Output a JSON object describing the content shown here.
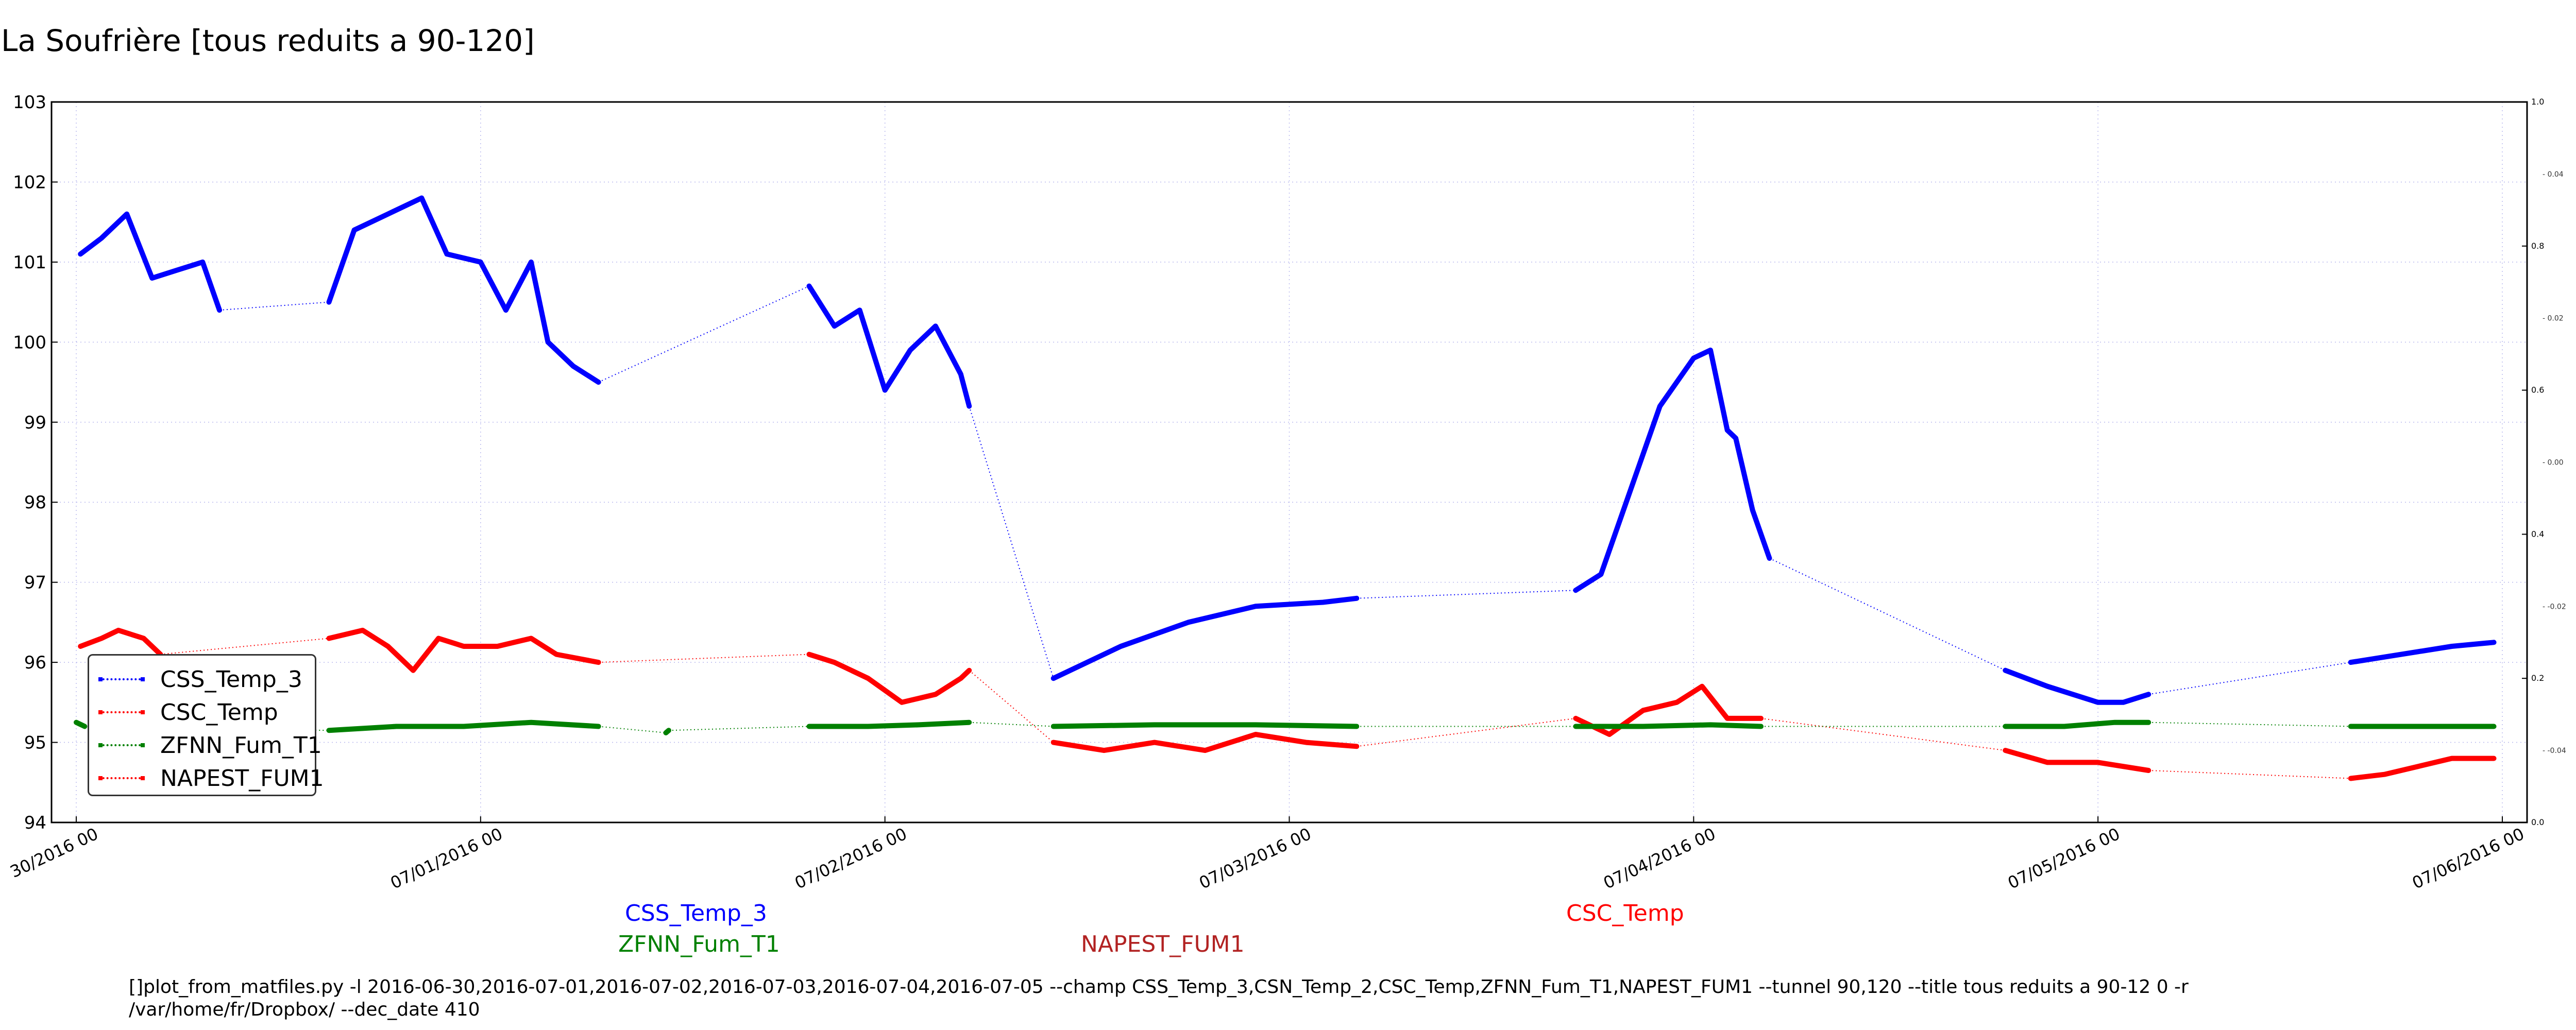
{
  "title": "La Soufrière [tous reduits a 90-120]",
  "chart_data": {
    "type": "line",
    "title": "La Soufrière [tous reduits a 90-120]",
    "xlabel": "",
    "ylabel": "",
    "x_range": [
      "2016-06-30 00:00",
      "2016-07-06 00:00"
    ],
    "xticks": [
      "30/2016 00",
      "07/01/2016 00",
      "07/02/2016 00",
      "07/03/2016 00",
      "07/04/2016 00",
      "07/05/2016 00",
      "07/06/2016 00"
    ],
    "ylim": [
      94,
      103
    ],
    "yticks": [
      "94",
      "95",
      "96",
      "97",
      "98",
      "99",
      "100",
      "101",
      "102",
      "103"
    ],
    "right_axis_ticks": [
      "0.0",
      "0.2",
      "0.4",
      "0.6",
      "0.8",
      "1.0"
    ],
    "right_axis_minor_ticks": [
      "-0.04",
      "-0.02",
      "0.00",
      "0.02",
      "0.04"
    ],
    "grid": true,
    "legend_position": "lower-left",
    "series": [
      {
        "name": "CSS_Temp_3",
        "color": "#0000ff",
        "segments": [
          [
            [
              "2016-06-30 00:15",
              101.1
            ],
            [
              "2016-06-30 01:30",
              101.3
            ],
            [
              "2016-06-30 03:00",
              101.6
            ],
            [
              "2016-06-30 04:30",
              100.8
            ],
            [
              "2016-06-30 06:00",
              100.9
            ],
            [
              "2016-06-30 07:30",
              101.0
            ],
            [
              "2016-06-30 08:30",
              100.4
            ]
          ],
          [
            [
              "2016-06-30 15:00",
              100.5
            ],
            [
              "2016-06-30 16:30",
              101.4
            ],
            [
              "2016-06-30 18:30",
              101.6
            ],
            [
              "2016-06-30 20:30",
              101.8
            ],
            [
              "2016-06-30 22:00",
              101.1
            ],
            [
              "2016-07-01 00:00",
              101.0
            ],
            [
              "2016-07-01 01:30",
              100.4
            ],
            [
              "2016-07-01 03:00",
              101.0
            ],
            [
              "2016-07-01 04:00",
              100.0
            ],
            [
              "2016-07-01 05:30",
              99.7
            ],
            [
              "2016-07-01 07:00",
              99.5
            ]
          ],
          [
            [
              "2016-07-01 19:30",
              100.7
            ],
            [
              "2016-07-01 21:00",
              100.2
            ],
            [
              "2016-07-01 22:30",
              100.4
            ],
            [
              "2016-07-02 00:00",
              99.4
            ],
            [
              "2016-07-02 01:30",
              99.9
            ],
            [
              "2016-07-02 03:00",
              100.2
            ],
            [
              "2016-07-02 04:30",
              99.6
            ],
            [
              "2016-07-02 05:00",
              99.2
            ]
          ],
          [
            [
              "2016-07-02 10:00",
              95.8
            ],
            [
              "2016-07-02 14:00",
              96.2
            ],
            [
              "2016-07-02 18:00",
              96.5
            ],
            [
              "2016-07-02 22:00",
              96.7
            ],
            [
              "2016-07-03 02:00",
              96.75
            ],
            [
              "2016-07-03 04:00",
              96.8
            ]
          ],
          [
            [
              "2016-07-03 17:00",
              96.9
            ],
            [
              "2016-07-03 18:30",
              97.1
            ],
            [
              "2016-07-03 20:00",
              98.0
            ],
            [
              "2016-07-03 22:00",
              99.2
            ],
            [
              "2016-07-04 00:00",
              99.8
            ],
            [
              "2016-07-04 01:00",
              99.9
            ],
            [
              "2016-07-04 02:00",
              98.9
            ],
            [
              "2016-07-04 02:30",
              98.8
            ],
            [
              "2016-07-04 03:30",
              97.9
            ],
            [
              "2016-07-04 04:30",
              97.3
            ]
          ],
          [
            [
              "2016-07-04 18:30",
              95.9
            ],
            [
              "2016-07-04 21:00",
              95.7
            ],
            [
              "2016-07-05 00:00",
              95.5
            ],
            [
              "2016-07-05 01:30",
              95.5
            ],
            [
              "2016-07-05 03:00",
              95.6
            ]
          ],
          [
            [
              "2016-07-05 15:00",
              96.0
            ],
            [
              "2016-07-05 18:00",
              96.1
            ],
            [
              "2016-07-05 21:00",
              96.2
            ],
            [
              "2016-07-05 23:30",
              96.25
            ]
          ]
        ]
      },
      {
        "name": "CSC_Temp",
        "color": "#ff0000",
        "segments": [
          [
            [
              "2016-06-30 00:15",
              96.2
            ],
            [
              "2016-06-30 01:30",
              96.3
            ],
            [
              "2016-06-30 02:30",
              96.4
            ],
            [
              "2016-06-30 04:00",
              96.3
            ],
            [
              "2016-06-30 05:00",
              96.1
            ]
          ],
          [
            [
              "2016-06-30 15:00",
              96.3
            ],
            [
              "2016-06-30 17:00",
              96.4
            ],
            [
              "2016-06-30 18:30",
              96.2
            ],
            [
              "2016-06-30 20:00",
              95.9
            ],
            [
              "2016-06-30 21:30",
              96.3
            ],
            [
              "2016-06-30 23:00",
              96.2
            ],
            [
              "2016-07-01 01:00",
              96.2
            ],
            [
              "2016-07-01 03:00",
              96.3
            ],
            [
              "2016-07-01 04:30",
              96.1
            ],
            [
              "2016-07-01 07:00",
              96.0
            ]
          ],
          [
            [
              "2016-07-01 19:30",
              96.1
            ],
            [
              "2016-07-01 21:00",
              96.0
            ],
            [
              "2016-07-01 23:00",
              95.8
            ],
            [
              "2016-07-02 01:00",
              95.5
            ],
            [
              "2016-07-02 03:00",
              95.6
            ],
            [
              "2016-07-02 04:30",
              95.8
            ],
            [
              "2016-07-02 05:00",
              95.9
            ]
          ],
          [
            [
              "2016-07-02 10:00",
              95.0
            ],
            [
              "2016-07-02 13:00",
              94.9
            ],
            [
              "2016-07-02 16:00",
              95.0
            ],
            [
              "2016-07-02 19:00",
              94.9
            ],
            [
              "2016-07-02 22:00",
              95.1
            ],
            [
              "2016-07-03 01:00",
              95.0
            ],
            [
              "2016-07-03 04:00",
              94.95
            ]
          ],
          [
            [
              "2016-07-03 17:00",
              95.3
            ],
            [
              "2016-07-03 19:00",
              95.1
            ],
            [
              "2016-07-03 21:00",
              95.4
            ],
            [
              "2016-07-03 23:00",
              95.5
            ],
            [
              "2016-07-04 00:30",
              95.7
            ],
            [
              "2016-07-04 02:00",
              95.3
            ],
            [
              "2016-07-04 04:00",
              95.3
            ]
          ],
          [
            [
              "2016-07-04 18:30",
              94.9
            ],
            [
              "2016-07-04 21:00",
              94.75
            ],
            [
              "2016-07-05 00:00",
              94.75
            ],
            [
              "2016-07-05 03:00",
              94.65
            ]
          ],
          [
            [
              "2016-07-05 15:00",
              94.55
            ],
            [
              "2016-07-05 17:00",
              94.6
            ],
            [
              "2016-07-05 19:00",
              94.7
            ],
            [
              "2016-07-05 21:00",
              94.8
            ],
            [
              "2016-07-05 23:30",
              94.8
            ]
          ]
        ]
      },
      {
        "name": "ZFNN_Fum_T1",
        "color": "#008000",
        "segments": [
          [
            [
              "2016-06-30 00:00",
              95.25
            ],
            [
              "2016-06-30 00:30",
              95.2
            ]
          ],
          [
            [
              "2016-06-30 15:00",
              95.15
            ],
            [
              "2016-06-30 19:00",
              95.2
            ],
            [
              "2016-06-30 23:00",
              95.2
            ],
            [
              "2016-07-01 03:00",
              95.25
            ],
            [
              "2016-07-01 07:00",
              95.2
            ]
          ],
          [
            [
              "2016-07-01 11:00",
              95.12
            ],
            [
              "2016-07-01 11:10",
              95.15
            ]
          ],
          [
            [
              "2016-07-01 19:30",
              95.2
            ],
            [
              "2016-07-01 23:00",
              95.2
            ],
            [
              "2016-07-02 02:00",
              95.22
            ],
            [
              "2016-07-02 05:00",
              95.25
            ]
          ],
          [
            [
              "2016-07-02 10:00",
              95.2
            ],
            [
              "2016-07-02 16:00",
              95.22
            ],
            [
              "2016-07-02 22:00",
              95.22
            ],
            [
              "2016-07-03 04:00",
              95.2
            ]
          ],
          [
            [
              "2016-07-03 17:00",
              95.2
            ],
            [
              "2016-07-03 21:00",
              95.2
            ],
            [
              "2016-07-04 01:00",
              95.22
            ],
            [
              "2016-07-04 04:00",
              95.2
            ]
          ],
          [
            [
              "2016-07-04 18:30",
              95.2
            ],
            [
              "2016-07-04 22:00",
              95.2
            ],
            [
              "2016-07-05 01:00",
              95.25
            ],
            [
              "2016-07-05 03:00",
              95.25
            ]
          ],
          [
            [
              "2016-07-05 15:00",
              95.2
            ],
            [
              "2016-07-05 19:00",
              95.2
            ],
            [
              "2016-07-05 23:30",
              95.2
            ]
          ]
        ]
      },
      {
        "name": "NAPEST_FUM1",
        "color": "#ff0000",
        "segments": []
      }
    ]
  },
  "legend": [
    {
      "name": "CSS_Temp_3",
      "color": "#0000ff"
    },
    {
      "name": "CSC_Temp",
      "color": "#ff0000"
    },
    {
      "name": "ZFNN_Fum_T1",
      "color": "#008000"
    },
    {
      "name": "NAPEST_FUM1",
      "color": "#ff0000"
    }
  ],
  "bottom_labels": {
    "css_temp_3": {
      "text": "CSS_Temp_3",
      "color": "#0000ff"
    },
    "zfnn_fum_t1": {
      "text": "ZFNN_Fum_T1",
      "color": "#008000"
    },
    "napest_fum1": {
      "text": "NAPEST_FUM1",
      "color": "#b22222"
    },
    "csc_temp": {
      "text": "CSC_Temp",
      "color": "#ff0000"
    }
  },
  "command_line": "[]plot_from_matfiles.py -l 2016-06-30,2016-07-01,2016-07-02,2016-07-03,2016-07-04,2016-07-05 --champ CSS_Temp_3,CSN_Temp_2,CSC_Temp,ZFNN_Fum_T1,NAPEST_FUM1 --tunnel 90,120 --title tous reduits a 90-12 0 -r /var/home/fr/Dropbox/ --dec_date 410"
}
